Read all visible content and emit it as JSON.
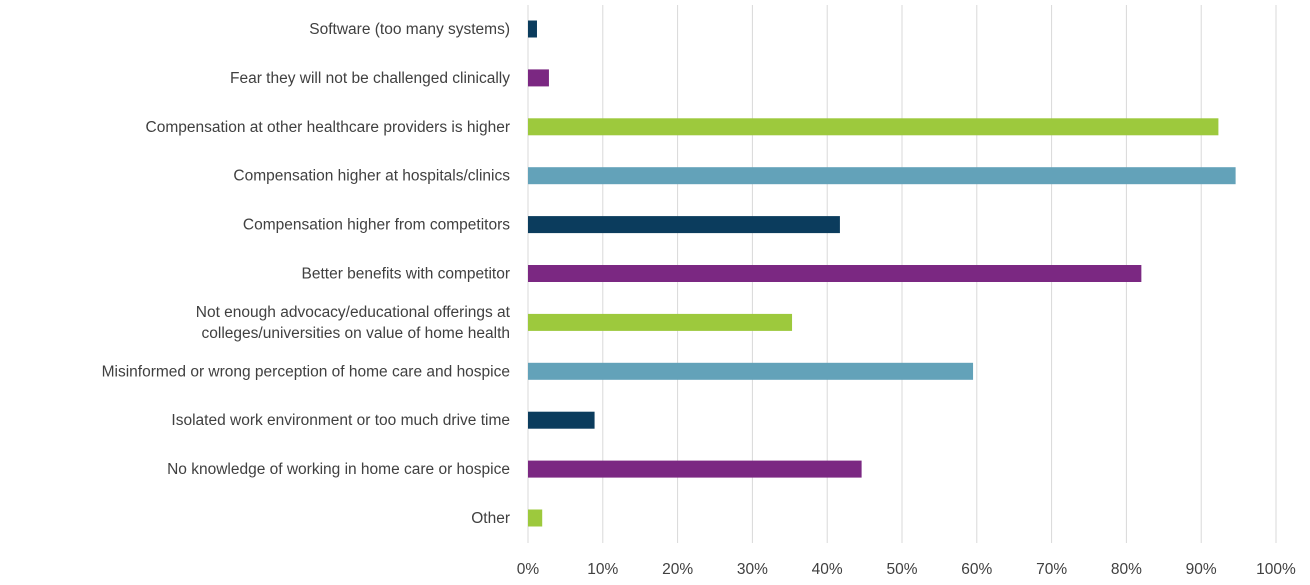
{
  "chart_data": {
    "type": "bar",
    "orientation": "horizontal",
    "title": "",
    "xlabel": "",
    "ylabel": "",
    "xlim": [
      0,
      100
    ],
    "x_unit": "%",
    "grid": true,
    "legend": "none",
    "tick_labels": [
      "0%",
      "10%",
      "20%",
      "30%",
      "40%",
      "50%",
      "60%",
      "70%",
      "80%",
      "90%",
      "100%"
    ],
    "categories": [
      "Software (too many systems)",
      "Fear they will not be challenged clinically",
      "Compensation at other healthcare providers is higher",
      "Compensation higher at hospitals/clinics",
      "Compensation higher from competitors",
      "Better benefits with competitor",
      "Not enough advocacy/educational offerings at colleges/universities on value of home health",
      "Misinformed or wrong perception of home care and hospice",
      "Isolated work environment or too much drive time",
      "No knowledge of working in home care or hospice",
      "Other"
    ],
    "category_label_lines": [
      [
        "Software (too many systems)"
      ],
      [
        "Fear they will not be challenged clinically"
      ],
      [
        "Compensation at other healthcare providers is higher"
      ],
      [
        "Compensation higher at hospitals/clinics"
      ],
      [
        "Compensation higher from competitors"
      ],
      [
        "Better benefits with competitor"
      ],
      [
        "Not enough advocacy/educational offerings at",
        "colleges/universities on value of home health"
      ],
      [
        "Misinformed or wrong perception of home care and hospice"
      ],
      [
        "Isolated work environment or too much drive time"
      ],
      [
        "No knowledge of working in home care or hospice"
      ],
      [
        "Other"
      ]
    ],
    "values": [
      1.2,
      2.8,
      92.3,
      94.6,
      41.7,
      82.0,
      35.3,
      59.5,
      8.9,
      44.6,
      1.9
    ],
    "colors": [
      "#0b3c5d",
      "#7b2882",
      "#9dc93d",
      "#63a2b9",
      "#0b3c5d",
      "#7b2882",
      "#9dc93d",
      "#63a2b9",
      "#0b3c5d",
      "#7b2882",
      "#9dc93d"
    ],
    "grid_color": "#d9d9d9",
    "label_color": "#404040"
  }
}
